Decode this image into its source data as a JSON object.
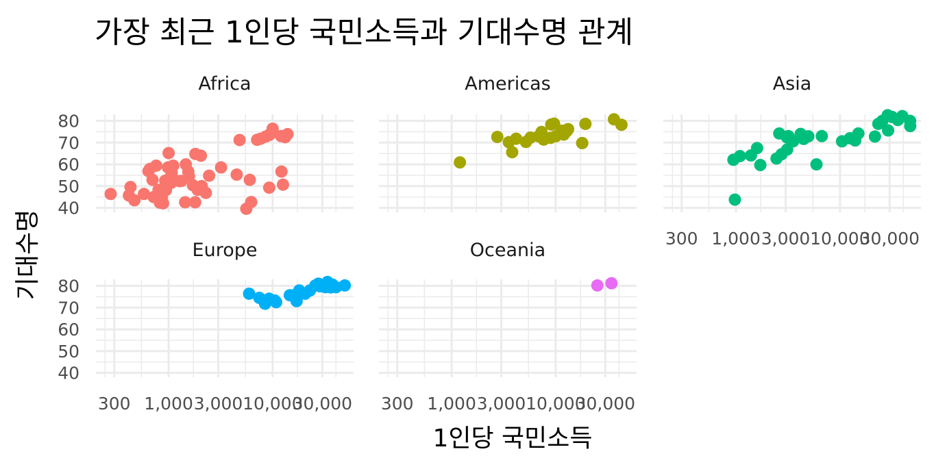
{
  "chart_data": {
    "type": "scatter",
    "title": "가장 최근 1인당 국민소득과 기대수명 관계",
    "xlabel": "1인당 국민소득",
    "ylabel": "기대수명",
    "x_scale": "log10",
    "xlim": [
      200,
      60000
    ],
    "ylim": [
      38,
      83
    ],
    "x_ticks": [
      300,
      1000,
      3000,
      10000,
      30000
    ],
    "x_tick_labels": [
      "300",
      "1,000",
      "3,000",
      "10,000",
      "30,000"
    ],
    "y_ticks": [
      40,
      50,
      60,
      70,
      80
    ],
    "y_tick_labels": [
      "40",
      "50",
      "60",
      "70",
      "80"
    ],
    "legend": "none",
    "panels": [
      {
        "name": "Africa",
        "color": "#F8766D",
        "points": [
          [
            277,
            46.4
          ],
          [
            415,
            45.7
          ],
          [
            430,
            49.6
          ],
          [
            469,
            43.5
          ],
          [
            579,
            46.4
          ],
          [
            640,
            56.9
          ],
          [
            660,
            57.9
          ],
          [
            700,
            52.9
          ],
          [
            720,
            45.0
          ],
          [
            759,
            59.4
          ],
          [
            800,
            48.3
          ],
          [
            824,
            42.4
          ],
          [
            860,
            44.7
          ],
          [
            863,
            46.9
          ],
          [
            883,
            42.1
          ],
          [
            927,
            52.5
          ],
          [
            942,
            48.2
          ],
          [
            986,
            58.6
          ],
          [
            1000,
            65.2
          ],
          [
            1042,
            54.1
          ],
          [
            1056,
            51.5
          ],
          [
            1070,
            56.0
          ],
          [
            1107,
            59.4
          ],
          [
            1272,
            52.3
          ],
          [
            1327,
            52.4
          ],
          [
            1441,
            42.6
          ],
          [
            1463,
            60.0
          ],
          [
            1544,
            56.7
          ],
          [
            1569,
            54.5
          ],
          [
            1713,
            50.4
          ],
          [
            1800,
            42.6
          ],
          [
            1807,
            64.8
          ],
          [
            1903,
            48.3
          ],
          [
            2042,
            64.0
          ],
          [
            2082,
            50.0
          ],
          [
            2280,
            46.9
          ],
          [
            2450,
            54.8
          ],
          [
            3193,
            58.6
          ],
          [
            4513,
            55.3
          ],
          [
            4811,
            71.2
          ],
          [
            5581,
            39.6
          ],
          [
            6223,
            42.7
          ],
          [
            6025,
            52.9
          ],
          [
            7093,
            71.3
          ],
          [
            7670,
            71.8
          ],
          [
            8605,
            72.8
          ],
          [
            9270,
            73.5
          ],
          [
            9500,
            74.0
          ],
          [
            10000,
            76.4
          ],
          [
            9269,
            49.3
          ],
          [
            12057,
            73.0
          ],
          [
            12570,
            50.7
          ],
          [
            13206,
            72.5
          ],
          [
            13900,
            73.9
          ],
          [
            12154,
            56.7
          ]
        ]
      },
      {
        "name": "Americas",
        "color": "#A3A500",
        "points": [
          [
            1201,
            60.9
          ],
          [
            2749,
            72.6
          ],
          [
            3548,
            70.2
          ],
          [
            3820,
            65.6
          ],
          [
            4172,
            71.8
          ],
          [
            5186,
            70.3
          ],
          [
            5728,
            72.3
          ],
          [
            6873,
            72.9
          ],
          [
            7008,
            72.8
          ],
          [
            7320,
            74.9
          ],
          [
            7670,
            71.4
          ],
          [
            8948,
            72.2
          ],
          [
            9066,
            78.3
          ],
          [
            9645,
            78.7
          ],
          [
            10000,
            72.9
          ],
          [
            11415,
            75.5
          ],
          [
            11977,
            73.7
          ],
          [
            12779,
            75.3
          ],
          [
            13172,
            76.2
          ],
          [
            18009,
            69.8
          ],
          [
            18008,
            69.8
          ],
          [
            19328,
            78.6
          ],
          [
            36319,
            80.7
          ],
          [
            42952,
            78.2
          ]
        ]
      },
      {
        "name": "Asia",
        "color": "#00BF7D",
        "points": [
          [
            944,
            62.1
          ],
          [
            975,
            43.8
          ],
          [
            1091,
            63.8
          ],
          [
            1391,
            64.1
          ],
          [
            1594,
            67.5
          ],
          [
            1713,
            59.7
          ],
          [
            2452,
            62.7
          ],
          [
            2605,
            74.2
          ],
          [
            2749,
            64.7
          ],
          [
            3095,
            72.4
          ],
          [
            3100,
            66.8
          ],
          [
            3190,
            73.0
          ],
          [
            3540,
            70.6
          ],
          [
            4184,
            74.0
          ],
          [
            4471,
            71.7
          ],
          [
            4959,
            72.9
          ],
          [
            5937,
            60.0
          ],
          [
            6680,
            73.0
          ],
          [
            10461,
            70.6
          ],
          [
            12452,
            72.0
          ],
          [
            14000,
            71.0
          ],
          [
            15000,
            74.2
          ],
          [
            21655,
            72.8
          ],
          [
            23348,
            78.6
          ],
          [
            25523,
            80.0
          ],
          [
            28718,
            82.6
          ],
          [
            29000,
            75.6
          ],
          [
            31656,
            81.8
          ],
          [
            36000,
            80.4
          ],
          [
            39725,
            82.2
          ],
          [
            47143,
            80.0
          ],
          [
            47306,
            77.6
          ]
        ]
      },
      {
        "name": "Europe",
        "color": "#00B0F6",
        "points": [
          [
            5937,
            76.4
          ],
          [
            7446,
            74.5
          ],
          [
            8458,
            71.8
          ],
          [
            9253,
            74.1
          ],
          [
            10461,
            73.3
          ],
          [
            10808,
            72.5
          ],
          [
            14619,
            75.7
          ],
          [
            15390,
            75.6
          ],
          [
            17000,
            73.0
          ],
          [
            18009,
            77.9
          ],
          [
            20509,
            76.4
          ],
          [
            22833,
            77.9
          ],
          [
            25768,
            80.2
          ],
          [
            27538,
            81.0
          ],
          [
            28569,
            79.8
          ],
          [
            32170,
            79.4
          ],
          [
            33207,
            79.8
          ],
          [
            33692,
            81.8
          ],
          [
            35278,
            80.5
          ],
          [
            36126,
            79.3
          ],
          [
            36181,
            80.2
          ],
          [
            37506,
            80.6
          ],
          [
            40676,
            79.4
          ],
          [
            49357,
            80.2
          ]
        ]
      },
      {
        "name": "Oceania",
        "color": "#E76BF3",
        "points": [
          [
            25185,
            80.2
          ],
          [
            34435,
            81.2
          ]
        ]
      }
    ]
  }
}
